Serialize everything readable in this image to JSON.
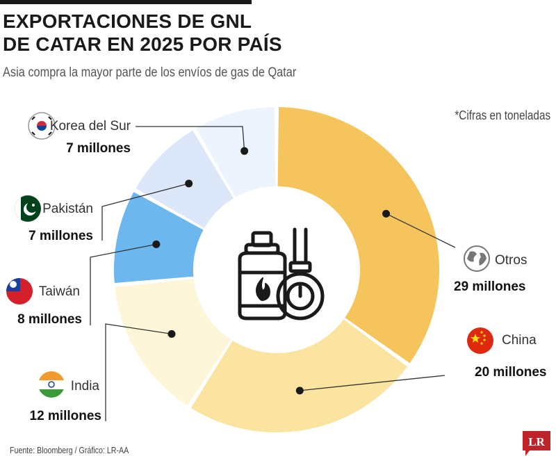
{
  "header": {
    "title_line1": "EXPORTACIONES DE GNL",
    "title_line2": "DE CATAR EN 2025 POR PAÍS",
    "subtitle": "Asia compra la mayor parte de los envíos de gas de Qatar",
    "note": "*Cifras en toneladas"
  },
  "footer": {
    "source": "Fuente: Bloomberg / Gráfico: LR-AA",
    "logo_text": "LR"
  },
  "chart_data": {
    "type": "pie",
    "variant": "donut",
    "unit": "millones de toneladas",
    "slices": [
      {
        "name": "Otros",
        "value": 29,
        "label": "29 millones",
        "color": "#F5C45C",
        "icon": "globe-icon"
      },
      {
        "name": "China",
        "value": 20,
        "label": "20 millones",
        "color": "#FBE3A0",
        "icon": "china-flag-icon"
      },
      {
        "name": "India",
        "value": 12,
        "label": "12 millones",
        "color": "#FDF6D9",
        "icon": "india-flag-icon"
      },
      {
        "name": "Taiwán",
        "value": 8,
        "label": "8 millones",
        "color": "#6BB7EE",
        "icon": "taiwan-flag-icon"
      },
      {
        "name": "Pakistán",
        "value": 7,
        "label": "7 millones",
        "color": "#DCE7FA",
        "icon": "pakistan-flag-icon"
      },
      {
        "name": "Korea del Sur",
        "value": 7,
        "label": "7 millones",
        "color": "#EDF4FD",
        "icon": "korea-flag-icon"
      }
    ],
    "center_icon": "gas-cylinder-icon"
  }
}
